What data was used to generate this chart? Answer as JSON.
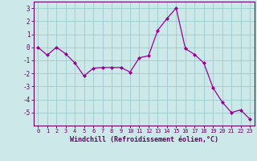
{
  "x": [
    0,
    1,
    2,
    3,
    4,
    5,
    6,
    7,
    8,
    9,
    10,
    11,
    12,
    13,
    14,
    15,
    16,
    17,
    18,
    19,
    20,
    21,
    22,
    23
  ],
  "y": [
    0.0,
    -0.6,
    0.0,
    -0.5,
    -1.2,
    -2.2,
    -1.6,
    -1.55,
    -1.55,
    -1.55,
    -1.9,
    -0.8,
    -0.65,
    1.3,
    2.2,
    3.0,
    -0.1,
    -0.55,
    -1.2,
    -3.1,
    -4.2,
    -5.0,
    -4.8,
    -5.5
  ],
  "line_color": "#990099",
  "marker_color": "#990099",
  "bg_color": "#cce8e8",
  "grid_color": "#99cccc",
  "axis_label_color": "#660066",
  "xlabel": "Windchill (Refroidissement éolien,°C)",
  "ylim": [
    -6,
    3.5
  ],
  "xlim": [
    -0.5,
    23.5
  ],
  "yticks": [
    -5,
    -4,
    -3,
    -2,
    -1,
    0,
    1,
    2,
    3
  ],
  "xticks": [
    0,
    1,
    2,
    3,
    4,
    5,
    6,
    7,
    8,
    9,
    10,
    11,
    12,
    13,
    14,
    15,
    16,
    17,
    18,
    19,
    20,
    21,
    22,
    23
  ],
  "spine_color": "#660066",
  "tick_color": "#660066"
}
